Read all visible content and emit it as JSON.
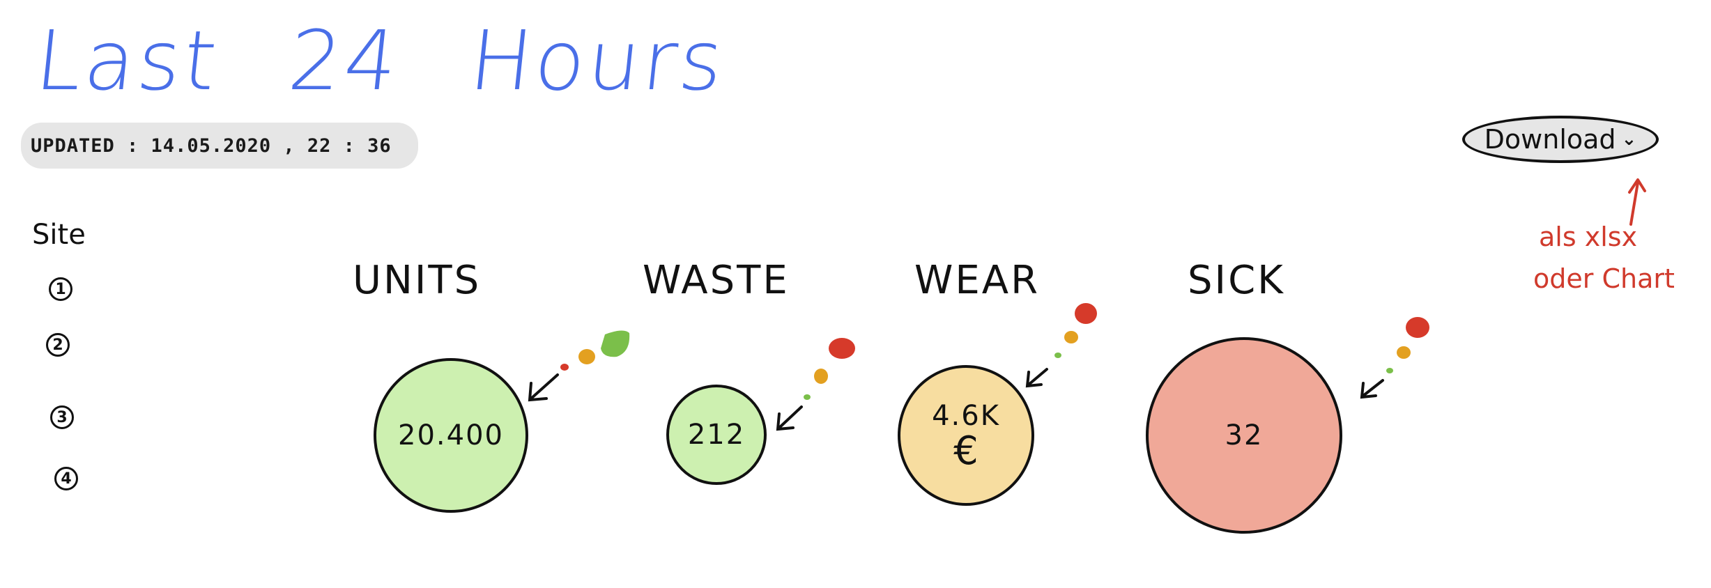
{
  "header": {
    "title": "Last 24 Hours",
    "updated": "UPDATED : 14.05.2020 , 22 : 36"
  },
  "download": {
    "label": "Download",
    "icon": "chevron-down-icon",
    "note_line1": "als   xlsx",
    "note_line2": "oder  Chart"
  },
  "sites": {
    "label": "Site",
    "items": [
      "1",
      "2",
      "3",
      "4"
    ]
  },
  "kpis": [
    {
      "label": "UNITS",
      "value": "20.400",
      "unit": "",
      "color": "#cdf0b0",
      "trend_colors": [
        "#d63a2a",
        "#e3a020",
        "#7bbf4a"
      ]
    },
    {
      "label": "WASTE",
      "value": "212",
      "unit": "",
      "color": "#cdf0b0",
      "trend_colors": [
        "#7bbf4a",
        "#e3a020",
        "#d63a2a"
      ]
    },
    {
      "label": "WEAR",
      "value": "4.6K",
      "unit": "€",
      "color": "#f7dda0",
      "trend_colors": [
        "#7bbf4a",
        "#e3a020",
        "#d63a2a"
      ]
    },
    {
      "label": "SICK",
      "value": "32",
      "unit": "",
      "color": "#f0a898",
      "trend_colors": [
        "#7bbf4a",
        "#e3a020",
        "#d63a2a"
      ]
    }
  ],
  "colors": {
    "title": "#4a6fe8",
    "annotation": "#d03a2c",
    "good": "#7bbf4a",
    "medium": "#e3a020",
    "bad": "#d63a2a"
  }
}
